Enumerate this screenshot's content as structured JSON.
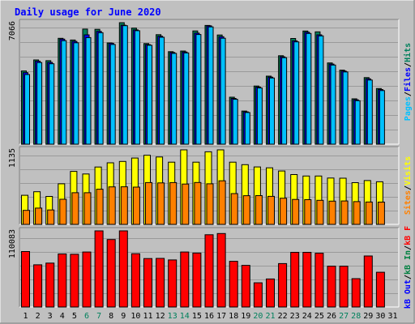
{
  "chart_data": {
    "title": "Daily usage for June 2020",
    "type": "bar",
    "categories": [
      "1",
      "2",
      "3",
      "4",
      "5",
      "6",
      "7",
      "8",
      "9",
      "10",
      "11",
      "12",
      "13",
      "14",
      "15",
      "16",
      "17",
      "18",
      "19",
      "20",
      "21",
      "22",
      "23",
      "24",
      "25",
      "26",
      "27",
      "28",
      "29",
      "30",
      "31"
    ],
    "weekend_days": [
      "6",
      "7",
      "13",
      "14",
      "20",
      "21",
      "27",
      "28"
    ],
    "colors": {
      "background": "#c0c0c0",
      "title": "#0000ff",
      "hits": "#00805c",
      "files": "#0000ff",
      "pages": "#00c0ff",
      "visits": "#ffff00",
      "sites": "#ff8000",
      "kb_in": "#008040",
      "kb_out": "#0000ff",
      "kb_f": "#ff0000",
      "weekend_label": "#00805c"
    },
    "panels": [
      {
        "id": "hits-files-pages",
        "max_label": "7066",
        "ylim": [
          0,
          7066
        ],
        "legend": [
          {
            "text": "Hits",
            "color": "#00805c"
          },
          {
            "text": "Files",
            "color": "#0000ff"
          },
          {
            "text": "Pages",
            "color": "#00c0ff"
          }
        ],
        "series": [
          {
            "name": "Hits",
            "color": "#00805c",
            "values": [
              4258,
              4900,
              4855,
              6158,
              6060,
              6695,
              6681,
              5890,
              7066,
              6749,
              5853,
              6367,
              5379,
              5417,
              6586,
              6906,
              6350,
              2732,
              1925,
              3383,
              3956,
              5145,
              6149,
              6582,
              6533,
              4724,
              4306,
              2640,
              3873,
              3237,
              0
            ]
          },
          {
            "name": "Files",
            "color": "#0000ff",
            "values": [
              4158,
              4830,
              4760,
              6110,
              5980,
              6360,
              6560,
              5870,
              6920,
              6649,
              5790,
              6280,
              5331,
              5360,
              6460,
              6880,
              6250,
              2660,
              1880,
              3319,
              3900,
              5085,
              6010,
              6510,
              6360,
              4660,
              4254,
              2580,
              3800,
              3180,
              0
            ]
          },
          {
            "name": "Pages",
            "color": "#00c0ff",
            "values": [
              4050,
              4750,
              4680,
              6020,
              5900,
              6200,
              6480,
              5800,
              6890,
              6600,
              5750,
              6220,
              5280,
              5310,
              6380,
              6820,
              6160,
              2610,
              1840,
              3270,
              3850,
              5030,
              5950,
              6440,
              6300,
              4600,
              4200,
              2530,
              3730,
              3120,
              0
            ]
          }
        ]
      },
      {
        "id": "visits-sites",
        "max_label": "1135",
        "ylim": [
          0,
          1135
        ],
        "legend": [
          {
            "text": "Visits",
            "color": "#ffff00"
          },
          {
            "text": "Sites",
            "color": "#ff8000"
          }
        ],
        "series": [
          {
            "name": "Visits",
            "color": "#ffff00",
            "values": [
              443,
              497,
              426,
              618,
              807,
              767,
              873,
              938,
              958,
              1011,
              1052,
              1027,
              947,
              1135,
              948,
              1106,
              1135,
              947,
              909,
              875,
              861,
              813,
              759,
              737,
              737,
              706,
              703,
              635,
              667,
              649,
              0
            ]
          },
          {
            "name": "Sites",
            "color": "#ff8000",
            "values": [
              214,
              248,
              219,
              383,
              482,
              482,
              536,
              571,
              573,
              568,
              636,
              632,
              636,
              614,
              638,
              618,
              664,
              469,
              437,
              438,
              427,
              398,
              380,
              376,
              366,
              354,
              357,
              347,
              340,
              339,
              0
            ]
          }
        ]
      },
      {
        "id": "kb",
        "max_label": "110083",
        "ylim": [
          0,
          110083
        ],
        "legend": [
          {
            "text": "kB F",
            "color": "#ff0000"
          },
          {
            "text": "kB In",
            "color": "#008040"
          },
          {
            "text": "kB Out",
            "color": "#0000ff"
          }
        ],
        "series": [
          {
            "name": "kB F",
            "color": "#ff0000",
            "values": [
              80250,
              61000,
              63500,
              76750,
              76250,
              79500,
              110083,
              97500,
              110083,
              77000,
              70000,
              70250,
              68000,
              79500,
              78000,
              104500,
              106250,
              66000,
              60250,
              35000,
              40500,
              62750,
              79000,
              79000,
              77750,
              59000,
              59000,
              41000,
              73750,
              50250,
              0
            ]
          }
        ]
      }
    ]
  }
}
